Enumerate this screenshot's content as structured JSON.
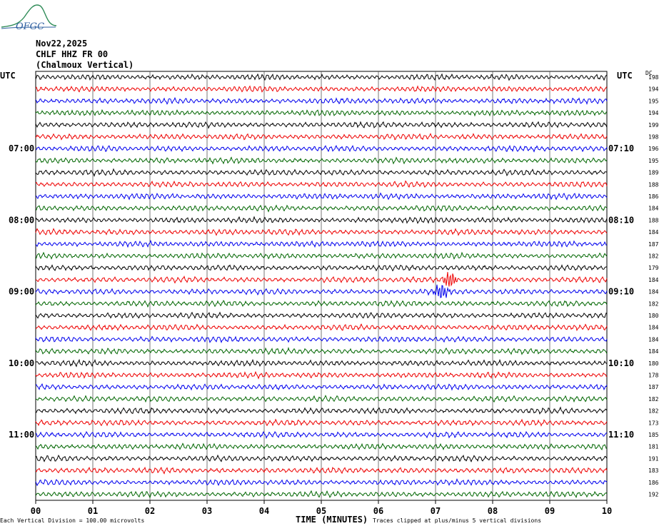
{
  "header": {
    "logo_text": "OFGC",
    "date": "Nov22,2025",
    "station": "CHLF HHZ FR 00",
    "location": "(Chalmoux Vertical)"
  },
  "left_axis_label": "UTC",
  "right_axis_label": "UTC",
  "dc_label": "DC",
  "footer": {
    "scale_note": "Each Vertical Division =  100.00 microvolts",
    "xlabel": "TIME (MINUTES)",
    "clip_note": "Traces clipped at plus/minus 5 vertical divisions"
  },
  "colors": {
    "black": "#000000",
    "red": "#ee0000",
    "blue": "#0000ee",
    "green": "#006600",
    "grid": "#555555"
  },
  "chart_data": {
    "type": "line",
    "title": "",
    "xlabel": "TIME (MINUTES)",
    "ylabel": "UTC",
    "xlim": [
      0,
      10
    ],
    "x_ticks": [
      "00",
      "01",
      "02",
      "03",
      "04",
      "05",
      "06",
      "07",
      "08",
      "09",
      "10"
    ],
    "left_time_labels": [
      {
        "row": 6,
        "label": "07:00"
      },
      {
        "row": 12,
        "label": "08:00"
      },
      {
        "row": 18,
        "label": "09:00"
      },
      {
        "row": 24,
        "label": "10:00"
      },
      {
        "row": 30,
        "label": "11:00"
      }
    ],
    "right_time_labels": [
      {
        "row": 6,
        "label": "07:10"
      },
      {
        "row": 12,
        "label": "08:10"
      },
      {
        "row": 18,
        "label": "09:10"
      },
      {
        "row": 24,
        "label": "10:10"
      },
      {
        "row": 30,
        "label": "11:10"
      }
    ],
    "trace_color_cycle": [
      "black",
      "red",
      "blue",
      "green"
    ],
    "dc_offsets": [
      198,
      194,
      195,
      194,
      199,
      198,
      196,
      195,
      189,
      188,
      186,
      184,
      188,
      184,
      187,
      182,
      179,
      184,
      184,
      182,
      180,
      184,
      184,
      184,
      180,
      178,
      187,
      182,
      182,
      173,
      185,
      181,
      191,
      183,
      186,
      192
    ],
    "events": [
      {
        "row": 17,
        "minute": 7.2,
        "color": "red",
        "note": "clipped"
      },
      {
        "row": 18,
        "minute": 7.05,
        "color": "blue",
        "note": "clipped"
      }
    ]
  }
}
